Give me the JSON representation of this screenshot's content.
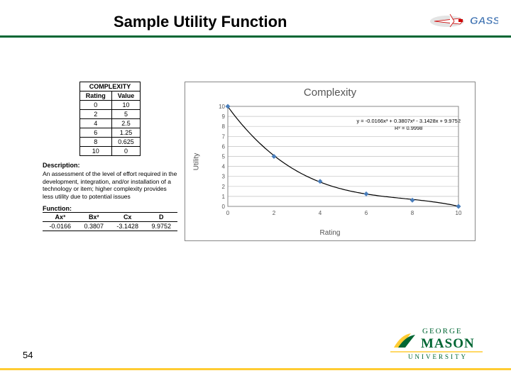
{
  "title": "Sample Utility Function",
  "underline_color": "#006633",
  "page_number": "54",
  "gass_text": "GASS",
  "complexity_table": {
    "header_span": "COMPLEXITY",
    "col1": "Rating",
    "col2": "Value",
    "rows": [
      [
        "0",
        "10"
      ],
      [
        "2",
        "5"
      ],
      [
        "4",
        "2.5"
      ],
      [
        "6",
        "1.25"
      ],
      [
        "8",
        "0.625"
      ],
      [
        "10",
        "0"
      ]
    ]
  },
  "description": {
    "label": "Description:",
    "text": "An assessment of the level of effort required in the development, integration, and/or installation of a technology or item; higher complexity provides less utility due to potential issues"
  },
  "function": {
    "label": "Function:",
    "headers": [
      "Ax³",
      "Bx²",
      "Cx",
      "D"
    ],
    "values": [
      "-0.0166",
      "0.3807",
      "-3.1428",
      "9.9752"
    ]
  },
  "chart": {
    "title": "Complexity",
    "xlabel": "Rating",
    "ylabel": "Utility",
    "equation_line1": "y = -0.0166x³ + 0.3807x² - 3.1428x + 9.9752",
    "equation_line2": "R² = 0.9998",
    "x_ticks": [
      0,
      2,
      4,
      6,
      8,
      10
    ],
    "y_ticks": [
      0,
      1,
      2,
      3,
      4,
      5,
      6,
      7,
      8,
      9,
      10
    ],
    "xlim": [
      0,
      10
    ],
    "ylim": [
      0,
      10
    ],
    "points": [
      {
        "x": 0,
        "y": 10
      },
      {
        "x": 2,
        "y": 5
      },
      {
        "x": 4,
        "y": 2.5
      },
      {
        "x": 6,
        "y": 1.25
      },
      {
        "x": 8,
        "y": 0.625
      },
      {
        "x": 10,
        "y": 0
      }
    ],
    "marker_color": "#4a7ebb",
    "line_color": "#000000",
    "grid_color": "#c0c0c0",
    "background": "#ffffff"
  },
  "gmu": {
    "line1": "GEORGE",
    "line2": "MASON",
    "line3": "UNIVERSITY"
  }
}
